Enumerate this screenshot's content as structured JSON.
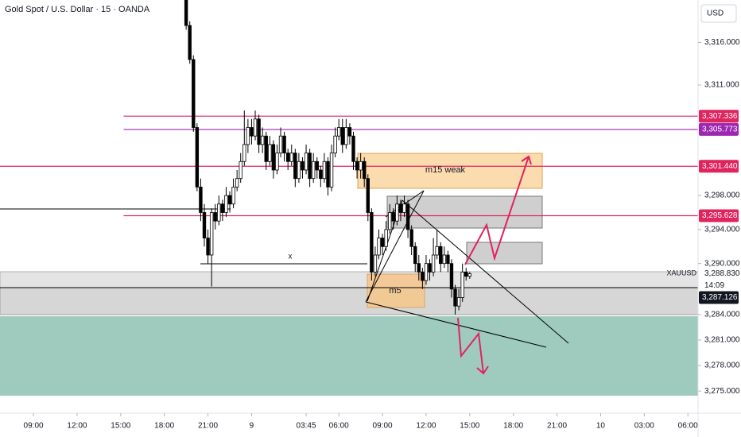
{
  "chart_data": {
    "type": "candlestick",
    "title": "Gold Spot / U.S. Dollar · 15 · OANDA",
    "currency": "USD",
    "up_color": "#ffffff",
    "down_color": "#000000",
    "wick_color": "#000000",
    "xlim": [
      -2.3,
      45.7
    ],
    "ylim": [
      3272.4,
      3321.0
    ],
    "xticks": [
      {
        "value": 0,
        "label": "09:00"
      },
      {
        "value": 3,
        "label": "12:00"
      },
      {
        "value": 6,
        "label": "15:00"
      },
      {
        "value": 9,
        "label": "18:00"
      },
      {
        "value": 12,
        "label": "21:00"
      },
      {
        "value": 15,
        "label": "9"
      },
      {
        "value": 18.75,
        "label": "03:45"
      },
      {
        "value": 21,
        "label": "06:00"
      },
      {
        "value": 24,
        "label": "09:00"
      },
      {
        "value": 27,
        "label": "12:00"
      },
      {
        "value": 30,
        "label": "15:00"
      },
      {
        "value": 33,
        "label": "18:00"
      },
      {
        "value": 36,
        "label": "21:00"
      },
      {
        "value": 39,
        "label": "10"
      },
      {
        "value": 42,
        "label": "03:00"
      },
      {
        "value": 45,
        "label": "06:00"
      }
    ],
    "yticks": [
      {
        "value": 3316,
        "label": "3,316.000"
      },
      {
        "value": 3311,
        "label": "3,311.000"
      },
      {
        "value": 3298,
        "label": "3,298.000"
      },
      {
        "value": 3294,
        "label": "3,294.000"
      },
      {
        "value": 3290,
        "label": "3,290.000"
      },
      {
        "value": 3284,
        "label": "3,284.000"
      },
      {
        "value": 3281,
        "label": "3,281.000"
      },
      {
        "value": 3278,
        "label": "3,278.000"
      },
      {
        "value": 3275,
        "label": "3,275.000"
      }
    ],
    "levels": [
      {
        "value": 3307.336,
        "label": "3,307.336",
        "color": "#e0245e",
        "x0": 6.2
      },
      {
        "value": 3305.773,
        "label": "3,305.773",
        "color": "#9c27b0",
        "x0": 6.2
      },
      {
        "value": 3301.44,
        "label": "3,301.440",
        "color": "#e0245e",
        "x0": -2.3
      },
      {
        "value": 3295.628,
        "label": "3,295.628",
        "color": "#e0245e",
        "x0": 6.2
      }
    ],
    "symbol_marker": {
      "name": "XAUUSD",
      "value": 3288.83,
      "label": "3,288.830"
    },
    "last_price": {
      "value": 3287.126,
      "label": "3,287.126",
      "countdown": "14:09"
    },
    "annotations": [
      "m15 weak",
      "m5",
      "x"
    ],
    "x": [
      10.5,
      10.75,
      11,
      11.25,
      11.5,
      11.75,
      12,
      12.25,
      12.5,
      12.75,
      13,
      13.25,
      13.5,
      13.75,
      14,
      14.25,
      14.5,
      14.75,
      15,
      15.25,
      15.5,
      15.75,
      16,
      16.25,
      16.5,
      16.75,
      17,
      17.25,
      17.5,
      17.75,
      18,
      18.25,
      18.5,
      18.75,
      19,
      19.25,
      19.5,
      19.75,
      20,
      20.25,
      20.5,
      20.75,
      21,
      21.25,
      21.5,
      21.75,
      22,
      22.25,
      22.5,
      22.75,
      23,
      23.25,
      23.5,
      23.75,
      24,
      24.25,
      24.5,
      24.75,
      25,
      25.25,
      25.5,
      25.75,
      26,
      26.25,
      26.5,
      26.75,
      27,
      27.25,
      27.5,
      27.75,
      28,
      28.25,
      28.5,
      28.75,
      29,
      29.25,
      29.5,
      29.75,
      30
    ],
    "ohlc": [
      [
        3321,
        3321.5,
        3317.5,
        3318
      ],
      [
        3318,
        3318.5,
        3313.5,
        3314
      ],
      [
        3314,
        3314.5,
        3305.5,
        3306
      ],
      [
        3306,
        3306.5,
        3298.5,
        3299
      ],
      [
        3299,
        3300,
        3295,
        3296
      ],
      [
        3296,
        3297,
        3292,
        3293
      ],
      [
        3293,
        3294,
        3290,
        3291
      ],
      [
        3291,
        3296.5,
        3287.3,
        3296
      ],
      [
        3296,
        3297,
        3294,
        3295
      ],
      [
        3295,
        3298,
        3294.5,
        3297
      ],
      [
        3297,
        3297.5,
        3295,
        3296
      ],
      [
        3296,
        3299,
        3295.5,
        3298
      ],
      [
        3298,
        3298.5,
        3296,
        3297
      ],
      [
        3297,
        3300,
        3296.5,
        3299
      ],
      [
        3299,
        3301,
        3298.5,
        3300
      ],
      [
        3300,
        3303,
        3299.5,
        3302
      ],
      [
        3302,
        3308,
        3301.5,
        3304
      ],
      [
        3304,
        3307,
        3303,
        3306
      ],
      [
        3306,
        3307,
        3304,
        3305
      ],
      [
        3305,
        3308,
        3304.5,
        3307
      ],
      [
        3307,
        3307.5,
        3303,
        3304
      ],
      [
        3304,
        3306,
        3303,
        3305
      ],
      [
        3305,
        3305.5,
        3301,
        3302
      ],
      [
        3302,
        3305,
        3301.5,
        3304
      ],
      [
        3304,
        3304.5,
        3300,
        3301
      ],
      [
        3301,
        3304,
        3300.5,
        3303
      ],
      [
        3303,
        3306,
        3302.5,
        3305
      ],
      [
        3305,
        3305.5,
        3302,
        3303
      ],
      [
        3303,
        3303.5,
        3301,
        3302
      ],
      [
        3302,
        3304,
        3301.5,
        3303
      ],
      [
        3303,
        3303.5,
        3299,
        3300
      ],
      [
        3300,
        3303,
        3299.5,
        3302
      ],
      [
        3302,
        3302.5,
        3300,
        3301
      ],
      [
        3301,
        3304,
        3300.5,
        3303
      ],
      [
        3303,
        3303.5,
        3299,
        3300
      ],
      [
        3300,
        3303,
        3299.5,
        3302
      ],
      [
        3302,
        3302.5,
        3300,
        3301
      ],
      [
        3301,
        3301.5,
        3299,
        3300
      ],
      [
        3300,
        3303,
        3299.5,
        3302
      ],
      [
        3302,
        3302.5,
        3298,
        3299
      ],
      [
        3299,
        3304,
        3298.5,
        3303
      ],
      [
        3303,
        3306,
        3302.5,
        3305
      ],
      [
        3305,
        3307,
        3304.5,
        3306
      ],
      [
        3306,
        3307,
        3303,
        3304
      ],
      [
        3304,
        3307,
        3303.5,
        3306
      ],
      [
        3306,
        3306.5,
        3304,
        3305
      ],
      [
        3305,
        3305.5,
        3301,
        3302
      ],
      [
        3302,
        3302.5,
        3300,
        3301
      ],
      [
        3301,
        3303,
        3300,
        3302
      ],
      [
        3302,
        3302.5,
        3299,
        3300
      ],
      [
        3300,
        3300.5,
        3295,
        3296
      ],
      [
        3296,
        3296.5,
        3288,
        3289
      ],
      [
        3289,
        3292,
        3288.5,
        3291
      ],
      [
        3291,
        3294,
        3290.5,
        3293
      ],
      [
        3293,
        3293.5,
        3291,
        3292
      ],
      [
        3292,
        3295,
        3291.5,
        3294
      ],
      [
        3294,
        3297,
        3293.5,
        3296
      ],
      [
        3296,
        3296.5,
        3294,
        3295
      ],
      [
        3295,
        3298,
        3294.5,
        3297
      ],
      [
        3297,
        3297.5,
        3295,
        3296
      ],
      [
        3296,
        3298,
        3295.5,
        3297
      ],
      [
        3297,
        3297.5,
        3293,
        3294
      ],
      [
        3294,
        3294.5,
        3291,
        3292
      ],
      [
        3292,
        3292.5,
        3289,
        3290
      ],
      [
        3290,
        3291,
        3288,
        3289
      ],
      [
        3289,
        3289.5,
        3287,
        3288
      ],
      [
        3288,
        3291,
        3287.5,
        3290
      ],
      [
        3290,
        3290.5,
        3288,
        3289
      ],
      [
        3289,
        3293,
        3288.5,
        3291
      ],
      [
        3291,
        3294,
        3290.5,
        3292
      ],
      [
        3292,
        3292.5,
        3289,
        3290
      ],
      [
        3290,
        3292,
        3289.5,
        3291
      ],
      [
        3291,
        3291.5,
        3289,
        3290
      ],
      [
        3290,
        3290.5,
        3286,
        3287
      ],
      [
        3287,
        3287.5,
        3284,
        3285
      ],
      [
        3285,
        3287,
        3284.5,
        3286
      ],
      [
        3286,
        3290,
        3285.5,
        3289
      ],
      [
        3289,
        3289.5,
        3288,
        3288.5
      ],
      [
        3288.5,
        3289,
        3288.2,
        3288.8
      ]
    ]
  }
}
